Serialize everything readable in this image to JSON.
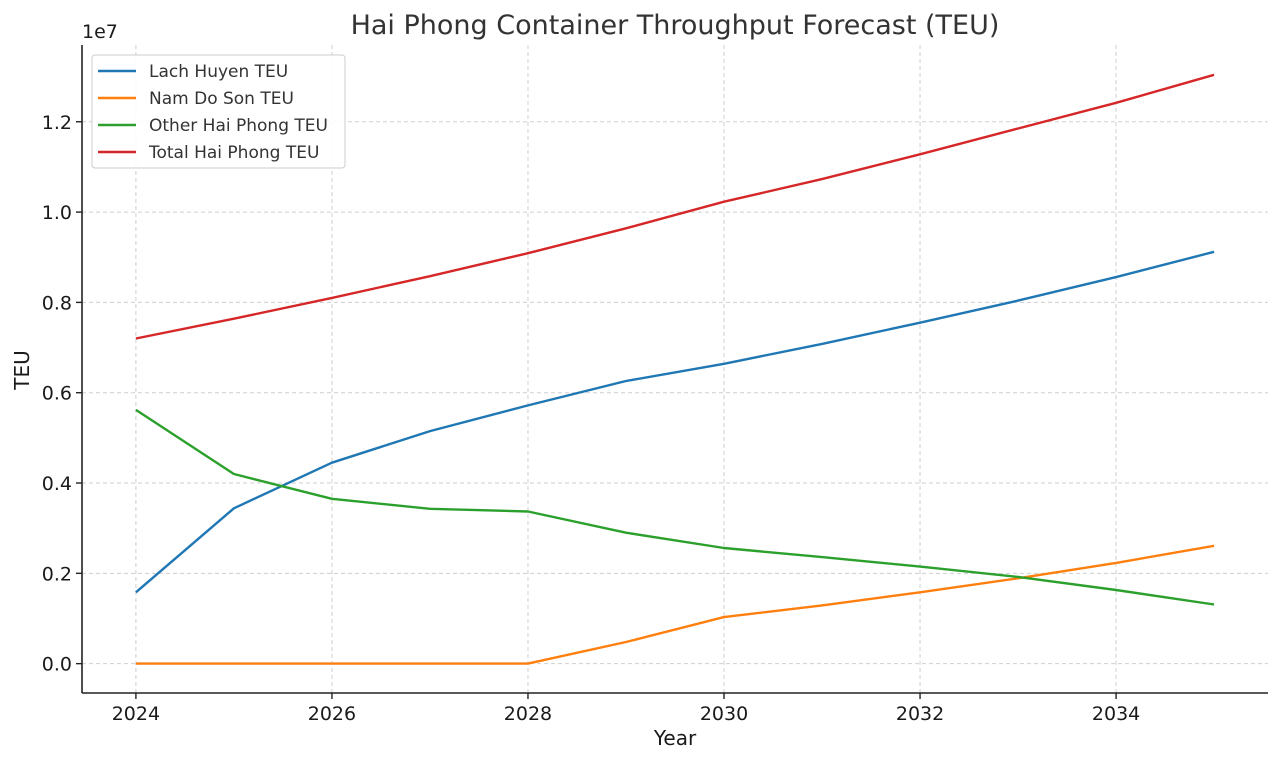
{
  "chart_data": {
    "type": "line",
    "title": "Hai Phong Container Throughput Forecast (TEU)",
    "xlabel": "Year",
    "ylabel": "TEU",
    "y_offset_label": "1e7",
    "xlim": [
      2023.45,
      2035.55
    ],
    "ylim": [
      -650000,
      13700000
    ],
    "x_ticks": [
      2024,
      2026,
      2028,
      2030,
      2032,
      2034
    ],
    "y_ticks": [
      0,
      2000000,
      4000000,
      6000000,
      8000000,
      10000000,
      12000000
    ],
    "y_tick_labels": [
      "0.0",
      "0.2",
      "0.4",
      "0.6",
      "0.8",
      "1.0",
      "1.2"
    ],
    "grid": true,
    "legend_position": "top-left",
    "x": [
      2024,
      2025,
      2026,
      2027,
      2028,
      2029,
      2030,
      2031,
      2032,
      2033,
      2034,
      2035
    ],
    "series": [
      {
        "name": "Lach Huyen TEU",
        "color": "#1f77b4",
        "values": [
          1580000,
          3440000,
          4450000,
          5150000,
          5720000,
          6260000,
          6640000,
          7080000,
          7550000,
          8040000,
          8560000,
          9120000
        ]
      },
      {
        "name": "Nam Do Son TEU",
        "color": "#ff7f0e",
        "values": [
          0,
          0,
          0,
          0,
          0,
          480000,
          1030000,
          1290000,
          1580000,
          1890000,
          2230000,
          2610000
        ]
      },
      {
        "name": "Other Hai Phong TEU",
        "color": "#2ca02c",
        "values": [
          5620000,
          4200000,
          3650000,
          3430000,
          3370000,
          2900000,
          2560000,
          2360000,
          2150000,
          1920000,
          1630000,
          1310000
        ]
      },
      {
        "name": "Total Hai Phong TEU",
        "color": "#d62728",
        "values": [
          7200000,
          7640000,
          8100000,
          8580000,
          9090000,
          9640000,
          10230000,
          10730000,
          11280000,
          11850000,
          12420000,
          13040000
        ]
      }
    ]
  }
}
